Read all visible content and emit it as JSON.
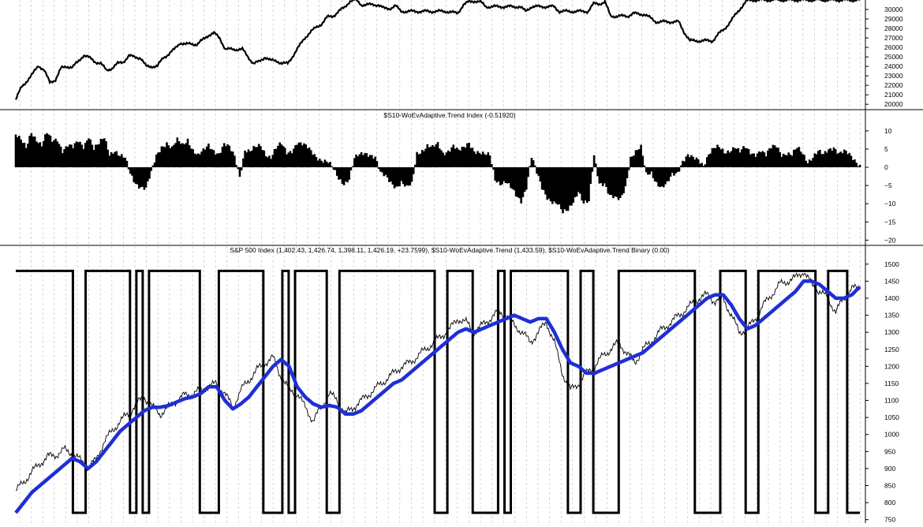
{
  "colors": {
    "background": "#ffffff",
    "price_line": "#000000",
    "trend_line": "#1f2fd6",
    "binary_line": "#000000",
    "histogram": "#000000",
    "grid": "#bdbdbd",
    "axis": "#000000"
  },
  "chart_data": [
    {
      "type": "line",
      "panel": "equity",
      "title": "",
      "ylim": [
        19600,
        31000
      ],
      "yticks": [
        20000,
        21000,
        22000,
        23000,
        24000,
        25000,
        26000,
        27000,
        28000,
        29000,
        30000
      ],
      "grid": "vertical dashed",
      "series": [
        {
          "values": [
            20500,
            21800,
            22500,
            23200,
            24100,
            23600,
            22300,
            22600,
            23800,
            24000,
            23900,
            24500,
            25200,
            24900,
            24500,
            24300,
            23600,
            23800,
            24300,
            24500,
            25100,
            25000,
            24900,
            24000,
            24000,
            24000,
            24900,
            25300,
            25800,
            26500,
            26300,
            26400,
            26300,
            26800,
            27300,
            27500,
            27000,
            25800,
            25800,
            25800,
            25800,
            25000,
            24300,
            24500,
            25000,
            24600,
            24600,
            24300,
            24300,
            25200,
            26100,
            27000,
            27600,
            28100,
            28500,
            29200,
            29300,
            29800,
            30200,
            30900,
            31000,
            30500,
            30500,
            30500,
            30500,
            30100,
            30100,
            30400,
            29800,
            29800,
            29800,
            29800,
            29800,
            29800,
            29800,
            29800,
            29800,
            29700,
            29600,
            30500,
            30800,
            30900,
            30800,
            30300,
            30300,
            30300,
            30300,
            30300,
            30300,
            30300,
            29800,
            30300,
            30300,
            30300,
            30300,
            30300,
            29800,
            29800,
            29800,
            29800,
            29800,
            29800,
            30600,
            30600,
            30800,
            29300,
            29300,
            29300,
            29300,
            29600,
            29500,
            29500,
            29100,
            28700,
            28700,
            28700,
            28700,
            28700,
            27600,
            26700,
            26700,
            26700,
            26700,
            26700,
            27400,
            27900,
            28600,
            29400,
            30200,
            30900,
            31000,
            31000,
            31000,
            31000,
            31000,
            31000,
            31000,
            31000,
            31000,
            31000,
            31000,
            31000,
            31000,
            31000,
            31000,
            31000,
            31000,
            31000,
            31000,
            31000
          ]
        }
      ]
    },
    {
      "type": "bar",
      "panel": "trend-index",
      "title": "$S10-WoEvAdaptive.Trend Index (-0.51920)",
      "ylim": [
        -21,
        13
      ],
      "yticks": [
        10,
        5,
        0,
        -5,
        -10,
        -15,
        -20
      ],
      "series": [
        {
          "values": [
            9,
            7,
            5,
            10,
            8,
            6,
            9,
            7,
            8,
            5,
            6,
            5,
            7,
            6,
            9,
            5,
            6,
            8,
            4,
            5,
            3,
            2,
            -2,
            -4,
            -5,
            -6,
            -2,
            3,
            6,
            7,
            5,
            7,
            6,
            8,
            5,
            3,
            4,
            6,
            5,
            4,
            6,
            5,
            3,
            -2,
            5,
            4,
            5,
            6,
            4,
            3,
            5,
            6,
            4,
            5,
            7,
            6,
            5,
            4,
            3,
            2,
            1,
            -1,
            -3,
            -4,
            -3,
            2,
            3,
            4,
            4,
            3,
            -2,
            -3,
            -4,
            -5,
            -4,
            -6,
            -5,
            4,
            5,
            6,
            5,
            6,
            4,
            5,
            6,
            4,
            5,
            7,
            5,
            4,
            3,
            3,
            -3,
            -4,
            -4,
            -6,
            -8,
            -9,
            -5,
            3,
            -2,
            -6,
            -8,
            -9,
            -10,
            -13,
            -12,
            -9,
            -6,
            -10,
            -10,
            3,
            -4,
            -4,
            -8,
            -9,
            -9,
            -5,
            3,
            4,
            5,
            -2,
            -1,
            -4,
            -6,
            -5,
            -2,
            -1,
            2,
            3,
            2,
            2,
            1,
            4,
            5,
            5,
            4,
            5,
            6,
            4,
            5,
            4,
            4,
            5,
            3,
            5,
            6,
            4,
            4,
            3,
            5,
            4,
            2,
            3,
            4,
            3,
            5,
            6,
            4,
            4,
            3,
            2,
            1
          ]
        }
      ]
    },
    {
      "type": "line",
      "panel": "sp500",
      "title": "S&P 500 Index (1,402.43, 1,426.74, 1,398.11, 1,426.19, +23.7599), $S10-WoEvAdaptive.Trend (1,433.59), $S10-WoEvAdaptive.Trend Binary (0.00)",
      "ylim": [
        740,
        1525
      ],
      "yticks": [
        750,
        800,
        850,
        900,
        950,
        1000,
        1050,
        1100,
        1150,
        1200,
        1250,
        1300,
        1350,
        1400,
        1450,
        1500
      ],
      "series": [
        {
          "name": "S&P 500 Index",
          "values": [
            835,
            860,
            890,
            915,
            935,
            940,
            955,
            945,
            925,
            905,
            925,
            980,
            1010,
            1040,
            1060,
            1090,
            1110,
            1080,
            1060,
            1080,
            1100,
            1115,
            1120,
            1130,
            1140,
            1150,
            1120,
            1080,
            1130,
            1160,
            1190,
            1210,
            1225,
            1170,
            1130,
            1120,
            1080,
            1040,
            1080,
            1120,
            1100,
            1060,
            1080,
            1100,
            1120,
            1140,
            1160,
            1180,
            1200,
            1210,
            1230,
            1250,
            1270,
            1290,
            1310,
            1340,
            1330,
            1300,
            1320,
            1340,
            1360,
            1350,
            1320,
            1300,
            1270,
            1300,
            1330,
            1270,
            1180,
            1130,
            1150,
            1180,
            1200,
            1230,
            1250,
            1270,
            1240,
            1210,
            1250,
            1270,
            1300,
            1320,
            1340,
            1360,
            1380,
            1400,
            1410,
            1390,
            1400,
            1350,
            1300,
            1310,
            1340,
            1380,
            1410,
            1440,
            1450,
            1460,
            1480,
            1440,
            1420,
            1400,
            1360,
            1400,
            1430,
            1426
          ]
        },
        {
          "name": "$S10-WoEvAdaptive.Trend",
          "values": [
            770,
            800,
            830,
            850,
            870,
            890,
            910,
            930,
            920,
            900,
            920,
            950,
            980,
            1010,
            1030,
            1050,
            1070,
            1080,
            1080,
            1085,
            1095,
            1105,
            1110,
            1120,
            1140,
            1140,
            1100,
            1075,
            1090,
            1110,
            1140,
            1170,
            1200,
            1220,
            1200,
            1140,
            1110,
            1090,
            1080,
            1085,
            1080,
            1060,
            1060,
            1070,
            1090,
            1110,
            1130,
            1150,
            1160,
            1180,
            1200,
            1220,
            1240,
            1260,
            1280,
            1300,
            1310,
            1300,
            1310,
            1320,
            1330,
            1340,
            1350,
            1340,
            1330,
            1340,
            1340,
            1300,
            1250,
            1210,
            1200,
            1180,
            1180,
            1190,
            1200,
            1210,
            1220,
            1230,
            1240,
            1260,
            1280,
            1300,
            1320,
            1340,
            1360,
            1380,
            1400,
            1410,
            1410,
            1380,
            1340,
            1310,
            1320,
            1340,
            1360,
            1380,
            1400,
            1420,
            1450,
            1450,
            1440,
            1420,
            1400,
            1400,
            1410,
            1434
          ]
        },
        {
          "name": "$S10-WoEvAdaptive.Trend Binary",
          "values": [
            1,
            1,
            1,
            1,
            1,
            1,
            1,
            1,
            1,
            0,
            0,
            1,
            1,
            1,
            1,
            1,
            1,
            1,
            0,
            1,
            0,
            1,
            1,
            1,
            1,
            1,
            1,
            1,
            1,
            0,
            0,
            0,
            1,
            1,
            1,
            1,
            1,
            1,
            1,
            0,
            0,
            0,
            1,
            0,
            1,
            1,
            1,
            1,
            1,
            0,
            0,
            1,
            1,
            1,
            1,
            1,
            1,
            1,
            1,
            1,
            1,
            1,
            1,
            1,
            1,
            1,
            0,
            0,
            1,
            1,
            1,
            1,
            0,
            0,
            0,
            0,
            1,
            0,
            1,
            1,
            1,
            1,
            1,
            1,
            1,
            1,
            1,
            0,
            0,
            1,
            1,
            0,
            0,
            0,
            0,
            1,
            1,
            1,
            1,
            1,
            1,
            1,
            1,
            1,
            1,
            1,
            1,
            0,
            0,
            0,
            0,
            1,
            1,
            1,
            1,
            0,
            0,
            1,
            1,
            1,
            1,
            1,
            1,
            1,
            1,
            1,
            0,
            0,
            1,
            1,
            1,
            0,
            0,
            0
          ]
        }
      ]
    }
  ]
}
